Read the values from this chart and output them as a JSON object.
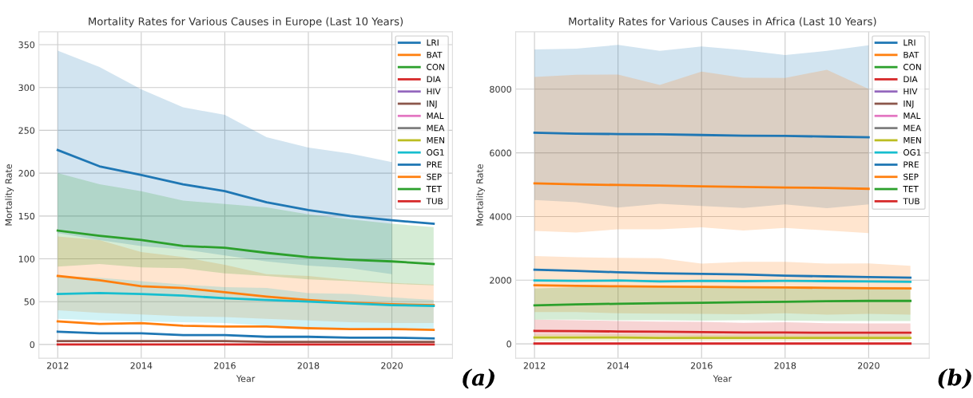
{
  "chart_data": [
    {
      "type": "line",
      "title": "Mortality Rates for Various Causes in Europe (Last 10 Years)",
      "xlabel": "Year",
      "ylabel": "Mortality Rate",
      "x": [
        2012,
        2013,
        2014,
        2015,
        2016,
        2017,
        2018,
        2019,
        2020,
        2021
      ],
      "xlim": [
        2011.55,
        2021.45
      ],
      "xticks": [
        2012,
        2014,
        2016,
        2018,
        2020
      ],
      "ylim": [
        -16,
        365
      ],
      "yticks": [
        0,
        50,
        100,
        150,
        200,
        250,
        300,
        350
      ],
      "grid": true,
      "legend": "top right",
      "annotations": [
        "(a)"
      ],
      "series": [
        {
          "name": "LRI",
          "color": "#1f77b4",
          "values": [
            227,
            208,
            198,
            187,
            179,
            166,
            157,
            150,
            145,
            141
          ],
          "lower": [
            130,
            122,
            115,
            111,
            104,
            97,
            92,
            89,
            82,
            null
          ],
          "upper": [
            343,
            324,
            298,
            277,
            268,
            242,
            230,
            223,
            213,
            null
          ]
        },
        {
          "name": "BAT",
          "color": "#ff7f0e",
          "values": [
            80,
            75,
            68,
            66,
            61,
            56,
            52,
            49,
            47,
            46
          ],
          "lower": [
            40,
            37,
            35,
            33,
            32,
            30,
            28,
            26,
            25,
            25
          ],
          "upper": [
            126,
            122,
            108,
            102,
            93,
            82,
            80,
            75,
            72,
            70
          ]
        },
        {
          "name": "CON",
          "color": "#2ca02c",
          "values": [
            133,
            127,
            122,
            115,
            113,
            107,
            102,
            99,
            97,
            94
          ],
          "lower": [
            91,
            94,
            90,
            89,
            83,
            80,
            76,
            74,
            71,
            69
          ],
          "upper": [
            200,
            187,
            179,
            168,
            164,
            160,
            152,
            146,
            141,
            137
          ]
        },
        {
          "name": "DIA",
          "color": "#d62728",
          "values": [
            null,
            null,
            null,
            null,
            null,
            null,
            null,
            null,
            null,
            null
          ]
        },
        {
          "name": "HIV",
          "color": "#9467bd",
          "values": [
            null,
            null,
            null,
            null,
            null,
            null,
            null,
            null,
            null,
            null
          ]
        },
        {
          "name": "INJ",
          "color": "#8c564b",
          "values": [
            4,
            4,
            4,
            4,
            4,
            3,
            3,
            3,
            3,
            3
          ]
        },
        {
          "name": "MAL",
          "color": "#e377c2",
          "values": [
            null,
            null,
            null,
            null,
            null,
            null,
            null,
            null,
            null,
            null
          ]
        },
        {
          "name": "MEA",
          "color": "#7f7f7f",
          "values": [
            null,
            null,
            null,
            null,
            null,
            null,
            null,
            null,
            null,
            null
          ]
        },
        {
          "name": "MEN",
          "color": "#bcbd22",
          "values": [
            null,
            null,
            null,
            null,
            null,
            null,
            null,
            null,
            null,
            null
          ]
        },
        {
          "name": "OG1",
          "color": "#17becf",
          "values": [
            59,
            60,
            59,
            57,
            54,
            52,
            50,
            48,
            46,
            45
          ],
          "lower": [
            30,
            28,
            27,
            26,
            25,
            22,
            20,
            19,
            18,
            17
          ],
          "upper": [
            80,
            78,
            74,
            70,
            67,
            66,
            60,
            59,
            55,
            52
          ]
        },
        {
          "name": "PRE",
          "color": "#1f77b4",
          "values": [
            15,
            13,
            13,
            11,
            11,
            9,
            9,
            8,
            8,
            7
          ]
        },
        {
          "name": "SEP",
          "color": "#ff7f0e",
          "values": [
            27,
            24,
            25,
            22,
            21,
            21,
            19,
            18,
            18,
            17
          ]
        },
        {
          "name": "TET",
          "color": "#2ca02c",
          "values": [
            null,
            null,
            null,
            null,
            null,
            null,
            null,
            null,
            null,
            null
          ]
        },
        {
          "name": "TUB",
          "color": "#d62728",
          "values": [
            0,
            0,
            0,
            0,
            0,
            0,
            0,
            0,
            0,
            0
          ]
        }
      ]
    },
    {
      "type": "line",
      "title": "Mortality Rates for Various Causes in Africa (Last 10 Years)",
      "xlabel": "Year",
      "ylabel": "Mortality Rate",
      "x": [
        2012,
        2013,
        2014,
        2015,
        2016,
        2017,
        2018,
        2019,
        2020,
        2021
      ],
      "xlim": [
        2011.55,
        2021.45
      ],
      "xticks": [
        2012,
        2014,
        2016,
        2018,
        2020
      ],
      "ylim": [
        -450,
        9800
      ],
      "yticks": [
        0,
        2000,
        4000,
        6000,
        8000
      ],
      "grid": true,
      "legend": "top right",
      "annotations": [
        "(b)"
      ],
      "series": [
        {
          "name": "LRI",
          "color": "#1f77b4",
          "values": [
            6630,
            6600,
            6590,
            6580,
            6560,
            6540,
            6530,
            6510,
            6490,
            null
          ],
          "lower": [
            4520,
            4450,
            4280,
            4400,
            4330,
            4270,
            4380,
            4260,
            4380,
            null
          ],
          "upper": [
            9250,
            9270,
            9390,
            9200,
            9340,
            9230,
            9070,
            9200,
            9380,
            null
          ]
        },
        {
          "name": "BAT",
          "color": "#ff7f0e",
          "values": [
            1840,
            1820,
            1810,
            1800,
            1790,
            1780,
            1770,
            1760,
            1750,
            1740
          ],
          "lower": [
            1000,
            1000,
            960,
            950,
            940,
            930,
            960,
            920,
            940,
            920
          ],
          "upper": [
            2760,
            2720,
            2700,
            2690,
            2520,
            2580,
            2580,
            2520,
            2530,
            2450
          ]
        },
        {
          "name": "CON",
          "color": "#2ca02c",
          "values": [
            1210,
            1240,
            1260,
            1280,
            1290,
            1310,
            1320,
            1340,
            1350,
            1350
          ],
          "lower": [
            760,
            760,
            740,
            740,
            730,
            740,
            730,
            720,
            720,
            720
          ],
          "upper": [
            1740,
            1780,
            1800,
            1790,
            1780,
            1800,
            1800,
            1790,
            1790,
            1780
          ]
        },
        {
          "name": "DIA",
          "color": "#d62728",
          "values": [
            410,
            400,
            390,
            380,
            370,
            360,
            360,
            350,
            350,
            350
          ],
          "lower": [
            250,
            250,
            240,
            240,
            230,
            230,
            230,
            220,
            220,
            220
          ],
          "upper": [
            760,
            740,
            720,
            700,
            690,
            660,
            680,
            650,
            640,
            640
          ]
        },
        {
          "name": "HIV",
          "color": "#9467bd",
          "values": [
            null,
            null,
            null,
            null,
            null,
            null,
            null,
            null,
            null,
            null
          ]
        },
        {
          "name": "INJ",
          "color": "#8c564b",
          "values": [
            null,
            null,
            null,
            null,
            null,
            null,
            null,
            null,
            null,
            null
          ]
        },
        {
          "name": "MAL",
          "color": "#e377c2",
          "values": [
            null,
            null,
            null,
            null,
            null,
            null,
            null,
            null,
            null,
            null
          ]
        },
        {
          "name": "MEA",
          "color": "#7f7f7f",
          "values": [
            null,
            null,
            null,
            null,
            null,
            null,
            null,
            null,
            null,
            null
          ]
        },
        {
          "name": "MEN",
          "color": "#bcbd22",
          "values": [
            200,
            200,
            200,
            190,
            190,
            190,
            190,
            190,
            190,
            190
          ],
          "lower": [
            100,
            100,
            100,
            100,
            100,
            100,
            100,
            100,
            100,
            100
          ],
          "upper": [
            300,
            300,
            300,
            290,
            290,
            290,
            290,
            290,
            290,
            290
          ]
        },
        {
          "name": "OG1",
          "color": "#17becf",
          "values": [
            1990,
            1980,
            1990,
            1960,
            1980,
            1970,
            1980,
            1970,
            1960,
            1950
          ]
        },
        {
          "name": "PRE",
          "color": "#1f77b4",
          "values": [
            2330,
            2290,
            2250,
            2220,
            2200,
            2180,
            2140,
            2120,
            2100,
            2080
          ]
        },
        {
          "name": "SEP",
          "color": "#ff7f0e",
          "values": [
            5040,
            5010,
            4990,
            4970,
            4950,
            4930,
            4910,
            4900,
            4870,
            null
          ],
          "lower": [
            3550,
            3500,
            3600,
            3600,
            3660,
            3560,
            3640,
            3560,
            3480,
            null
          ],
          "upper": [
            8380,
            8450,
            8460,
            8130,
            8550,
            8360,
            8350,
            8610,
            8010,
            null
          ]
        },
        {
          "name": "TET",
          "color": "#2ca02c",
          "values": [
            null,
            null,
            null,
            null,
            null,
            null,
            null,
            null,
            null,
            null
          ]
        },
        {
          "name": "TUB",
          "color": "#d62728",
          "values": [
            10,
            10,
            10,
            10,
            10,
            10,
            10,
            10,
            10,
            10
          ]
        }
      ]
    }
  ]
}
